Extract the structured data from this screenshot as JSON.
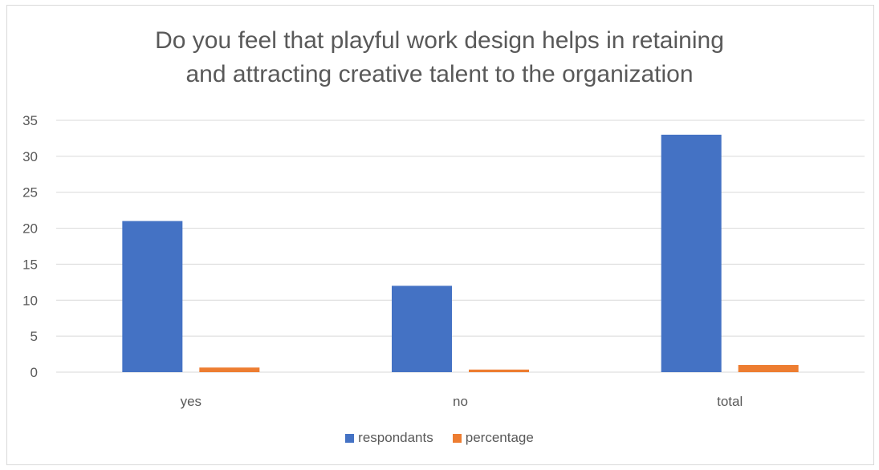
{
  "chart_data": {
    "type": "bar",
    "title_lines": [
      "Do you feel that playful work design helps in retaining",
      "and attracting creative talent to the organization"
    ],
    "categories": [
      "yes",
      "no",
      "total"
    ],
    "series": [
      {
        "name": "respondants",
        "values": [
          21,
          12,
          33
        ],
        "color": "#4472c4"
      },
      {
        "name": "percentage",
        "values": [
          0.64,
          0.36,
          1
        ],
        "color": "#ed7d31"
      }
    ],
    "ylim": [
      0,
      35
    ],
    "yticks": [
      0,
      5,
      10,
      15,
      20,
      25,
      30,
      35
    ],
    "grid": true,
    "legend_position": "bottom"
  }
}
